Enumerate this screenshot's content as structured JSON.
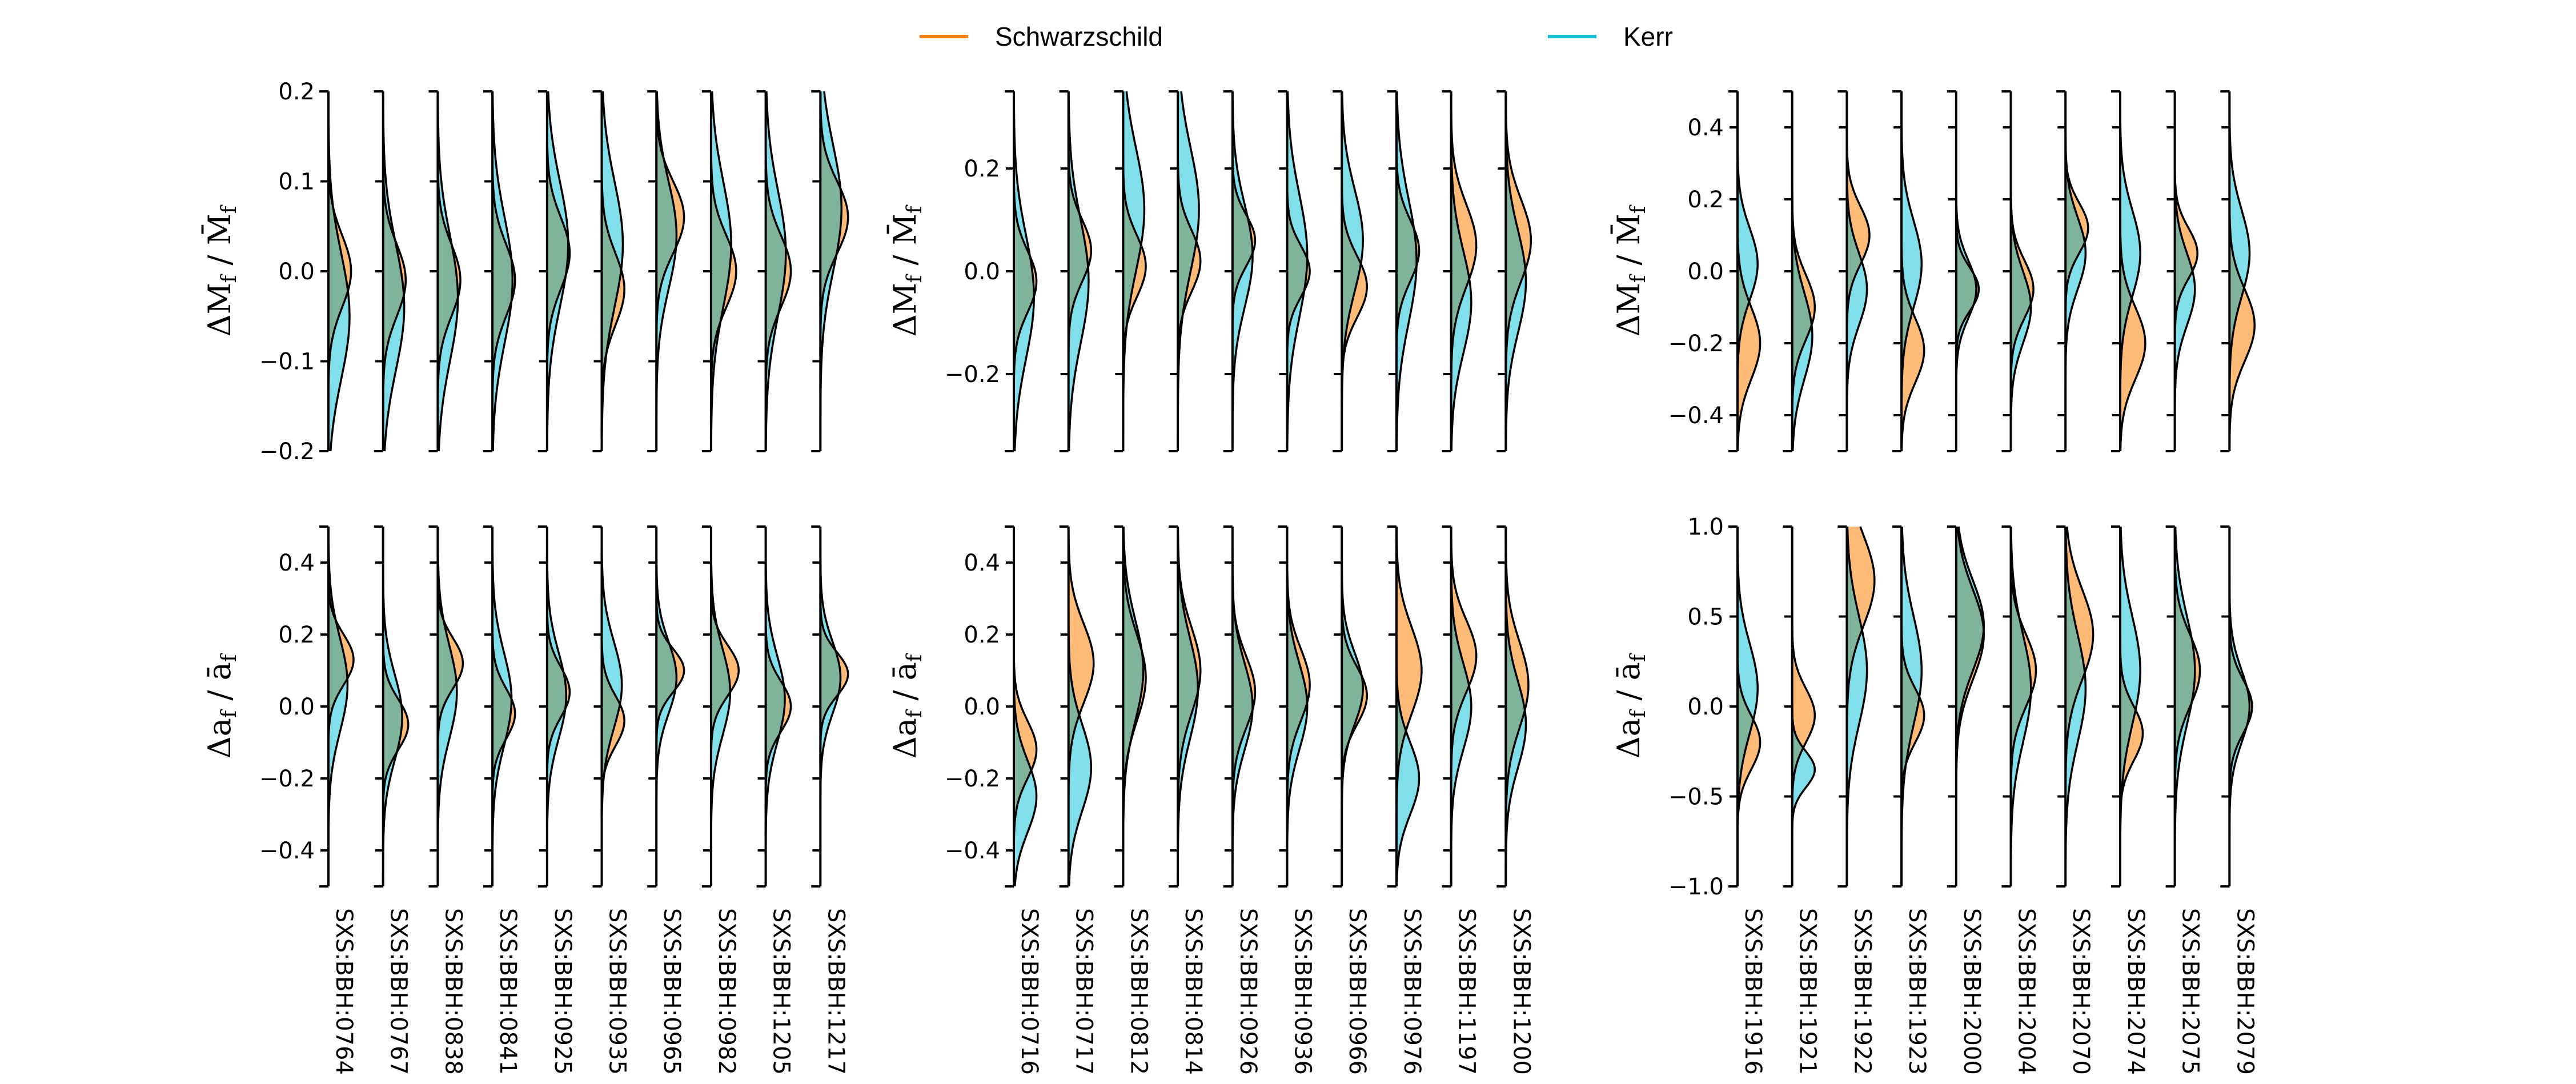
{
  "chart_data": {
    "type": "violin",
    "legend": [
      {
        "label": "Schwarzschild",
        "color": "#ff7f0e",
        "fill": "#ffbb78"
      },
      {
        "label": "Kerr",
        "color": "#17becf",
        "fill": "#80dfea"
      }
    ],
    "overlap_fill": "#7fb39a",
    "groups": [
      {
        "simulations": [
          "SXS:BBH:0764",
          "SXS:BBH:0767",
          "SXS:BBH:0838",
          "SXS:BBH:0841",
          "SXS:BBH:0925",
          "SXS:BBH:0935",
          "SXS:BBH:0965",
          "SXS:BBH:0982",
          "SXS:BBH:1205",
          "SXS:BBH:1217"
        ],
        "panels": [
          {
            "ylabel": "ΔM_f / M̄_f",
            "ylim": [
              -0.2,
              0.2
            ],
            "yticks": [
              -0.2,
              -0.1,
              0.0,
              0.1,
              0.2
            ],
            "ytick_labels": [
              "−0.2",
              "−0.1",
              "0.0",
              "0.1",
              "0.2"
            ],
            "schwarzschild": {
              "mean": [
                0.0,
                -0.01,
                -0.01,
                -0.01,
                0.02,
                -0.02,
                0.06,
                0.0,
                0.0,
                0.06
              ],
              "sd": [
                0.04,
                0.04,
                0.04,
                0.04,
                0.04,
                0.04,
                0.04,
                0.04,
                0.04,
                0.04
              ],
              "amp": [
                0.45,
                0.45,
                0.45,
                0.45,
                0.45,
                0.45,
                0.55,
                0.5,
                0.5,
                0.55
              ]
            },
            "kerr": {
              "mean": [
                -0.05,
                -0.04,
                -0.03,
                -0.01,
                0.03,
                0.03,
                0.04,
                0.03,
                0.02,
                0.07
              ],
              "sd": [
                0.07,
                0.07,
                0.07,
                0.07,
                0.07,
                0.07,
                0.06,
                0.07,
                0.07,
                0.07
              ],
              "amp": [
                0.42,
                0.42,
                0.4,
                0.4,
                0.42,
                0.42,
                0.4,
                0.4,
                0.4,
                0.42
              ]
            }
          },
          {
            "ylabel": "Δa_f / ā_f",
            "ylim": [
              -0.5,
              0.5
            ],
            "yticks": [
              -0.4,
              -0.2,
              0.0,
              0.2,
              0.4
            ],
            "ytick_labels": [
              "−0.4",
              "−0.2",
              "0.0",
              "0.2",
              "0.4"
            ],
            "schwarzschild": {
              "mean": [
                0.13,
                -0.05,
                0.12,
                -0.02,
                0.04,
                -0.04,
                0.1,
                0.1,
                0.0,
                0.09
              ],
              "sd": [
                0.07,
                0.07,
                0.07,
                0.07,
                0.07,
                0.07,
                0.06,
                0.07,
                0.07,
                0.06
              ],
              "amp": [
                0.5,
                0.5,
                0.5,
                0.45,
                0.45,
                0.45,
                0.55,
                0.55,
                0.5,
                0.55
              ]
            },
            "kerr": {
              "mean": [
                0.06,
                -0.03,
                0.04,
                0.02,
                0.03,
                0.06,
                0.08,
                0.04,
                0.02,
                0.08
              ],
              "sd": [
                0.13,
                0.12,
                0.13,
                0.13,
                0.12,
                0.12,
                0.1,
                0.12,
                0.12,
                0.1
              ],
              "amp": [
                0.38,
                0.38,
                0.38,
                0.38,
                0.38,
                0.4,
                0.4,
                0.38,
                0.38,
                0.4
              ]
            }
          }
        ]
      },
      {
        "simulations": [
          "SXS:BBH:0716",
          "SXS:BBH:0717",
          "SXS:BBH:0812",
          "SXS:BBH:0814",
          "SXS:BBH:0926",
          "SXS:BBH:0936",
          "SXS:BBH:0966",
          "SXS:BBH:0976",
          "SXS:BBH:1197",
          "SXS:BBH:1200"
        ],
        "panels": [
          {
            "ylabel": "ΔM_f / M̄_f",
            "ylim": [
              -0.35,
              0.35
            ],
            "yticks": [
              -0.2,
              0.0,
              0.2
            ],
            "ytick_labels": [
              "−0.2",
              "0.0",
              "0.2"
            ],
            "schwarzschild": {
              "mean": [
                -0.02,
                0.04,
                0.01,
                0.02,
                0.06,
                0.0,
                -0.03,
                0.04,
                0.05,
                0.06
              ],
              "sd": [
                0.06,
                0.06,
                0.06,
                0.06,
                0.05,
                0.05,
                0.06,
                0.06,
                0.08,
                0.08
              ],
              "amp": [
                0.45,
                0.45,
                0.45,
                0.45,
                0.45,
                0.45,
                0.5,
                0.45,
                0.5,
                0.5
              ]
            },
            "kerr": {
              "mean": [
                -0.05,
                -0.02,
                0.12,
                0.12,
                0.03,
                0.03,
                0.06,
                0.02,
                -0.06,
                -0.02
              ],
              "sd": [
                0.12,
                0.12,
                0.12,
                0.12,
                0.1,
                0.12,
                0.1,
                0.12,
                0.1,
                0.1
              ],
              "amp": [
                0.4,
                0.4,
                0.42,
                0.42,
                0.4,
                0.4,
                0.42,
                0.4,
                0.4,
                0.4
              ]
            }
          },
          {
            "ylabel": "Δa_f / ā_f",
            "ylim": [
              -0.5,
              0.5
            ],
            "yticks": [
              -0.4,
              -0.2,
              0.0,
              0.2,
              0.4
            ],
            "ytick_labels": [
              "−0.4",
              "−0.2",
              "0.0",
              "0.2",
              "0.4"
            ],
            "schwarzschild": {
              "mean": [
                -0.12,
                0.12,
                0.08,
                0.1,
                0.04,
                0.06,
                0.03,
                0.1,
                0.14,
                0.06
              ],
              "sd": [
                0.08,
                0.11,
                0.12,
                0.12,
                0.1,
                0.1,
                0.08,
                0.12,
                0.1,
                0.12
              ],
              "amp": [
                0.45,
                0.5,
                0.45,
                0.45,
                0.45,
                0.45,
                0.5,
                0.5,
                0.5,
                0.45
              ]
            },
            "kerr": {
              "mean": [
                -0.25,
                -0.17,
                0.1,
                0.05,
                0.0,
                0.0,
                0.05,
                -0.2,
                0.0,
                -0.05
              ],
              "sd": [
                0.1,
                0.12,
                0.14,
                0.14,
                0.12,
                0.12,
                0.1,
                0.1,
                0.12,
                0.12
              ],
              "amp": [
                0.45,
                0.45,
                0.4,
                0.4,
                0.4,
                0.4,
                0.42,
                0.45,
                0.4,
                0.4
              ]
            }
          }
        ]
      },
      {
        "simulations": [
          "SXS:BBH:1916",
          "SXS:BBH:1921",
          "SXS:BBH:1922",
          "SXS:BBH:1923",
          "SXS:BBH:2000",
          "SXS:BBH:2004",
          "SXS:BBH:2070",
          "SXS:BBH:2074",
          "SXS:BBH:2075",
          "SXS:BBH:2079"
        ],
        "panels": [
          {
            "ylabel": "ΔM_f / M̄_f",
            "ylim": [
              -0.5,
              0.5
            ],
            "yticks": [
              -0.4,
              -0.2,
              0.0,
              0.2,
              0.4
            ],
            "ytick_labels": [
              "−0.4",
              "−0.2",
              "0.0",
              "0.2",
              "0.4"
            ],
            "schwarzschild": {
              "mean": [
                -0.2,
                -0.1,
                0.1,
                -0.22,
                -0.05,
                -0.05,
                0.12,
                -0.2,
                0.05,
                -0.15
              ],
              "sd": [
                0.1,
                0.09,
                0.08,
                0.09,
                0.06,
                0.08,
                0.07,
                0.1,
                0.07,
                0.1
              ],
              "amp": [
                0.45,
                0.45,
                0.45,
                0.45,
                0.45,
                0.45,
                0.45,
                0.5,
                0.45,
                0.5
              ]
            },
            "kerr": {
              "mean": [
                0.02,
                -0.18,
                -0.05,
                0.02,
                -0.05,
                -0.1,
                0.05,
                0.05,
                -0.05,
                0.05
              ],
              "sd": [
                0.1,
                0.12,
                0.1,
                0.12,
                0.08,
                0.1,
                0.1,
                0.12,
                0.1,
                0.12
              ],
              "amp": [
                0.4,
                0.4,
                0.4,
                0.4,
                0.4,
                0.4,
                0.4,
                0.4,
                0.4,
                0.4
              ]
            }
          },
          {
            "ylabel": "Δa_f / ā_f",
            "ylim": [
              -1.0,
              1.0
            ],
            "yticks": [
              -1.0,
              -0.5,
              0.0,
              0.5,
              1.0
            ],
            "ytick_labels": [
              "−1.0",
              "−0.5",
              "0.0",
              "0.5",
              "1.0"
            ],
            "schwarzschild": {
              "mean": [
                -0.2,
                -0.05,
                0.7,
                -0.05,
                0.4,
                0.2,
                0.4,
                -0.15,
                0.2,
                0.0
              ],
              "sd": [
                0.15,
                0.15,
                0.25,
                0.15,
                0.25,
                0.2,
                0.25,
                0.15,
                0.2,
                0.15
              ],
              "amp": [
                0.45,
                0.45,
                0.55,
                0.45,
                0.55,
                0.5,
                0.55,
                0.45,
                0.5,
                0.45
              ]
            },
            "kerr": {
              "mean": [
                0.1,
                -0.35,
                0.2,
                0.2,
                0.45,
                0.1,
                0.1,
                0.2,
                0.2,
                0.0
              ],
              "sd": [
                0.25,
                0.1,
                0.3,
                0.3,
                0.25,
                0.3,
                0.3,
                0.3,
                0.3,
                0.2
              ],
              "amp": [
                0.4,
                0.45,
                0.4,
                0.4,
                0.55,
                0.4,
                0.4,
                0.4,
                0.4,
                0.4
              ]
            }
          }
        ]
      }
    ]
  }
}
